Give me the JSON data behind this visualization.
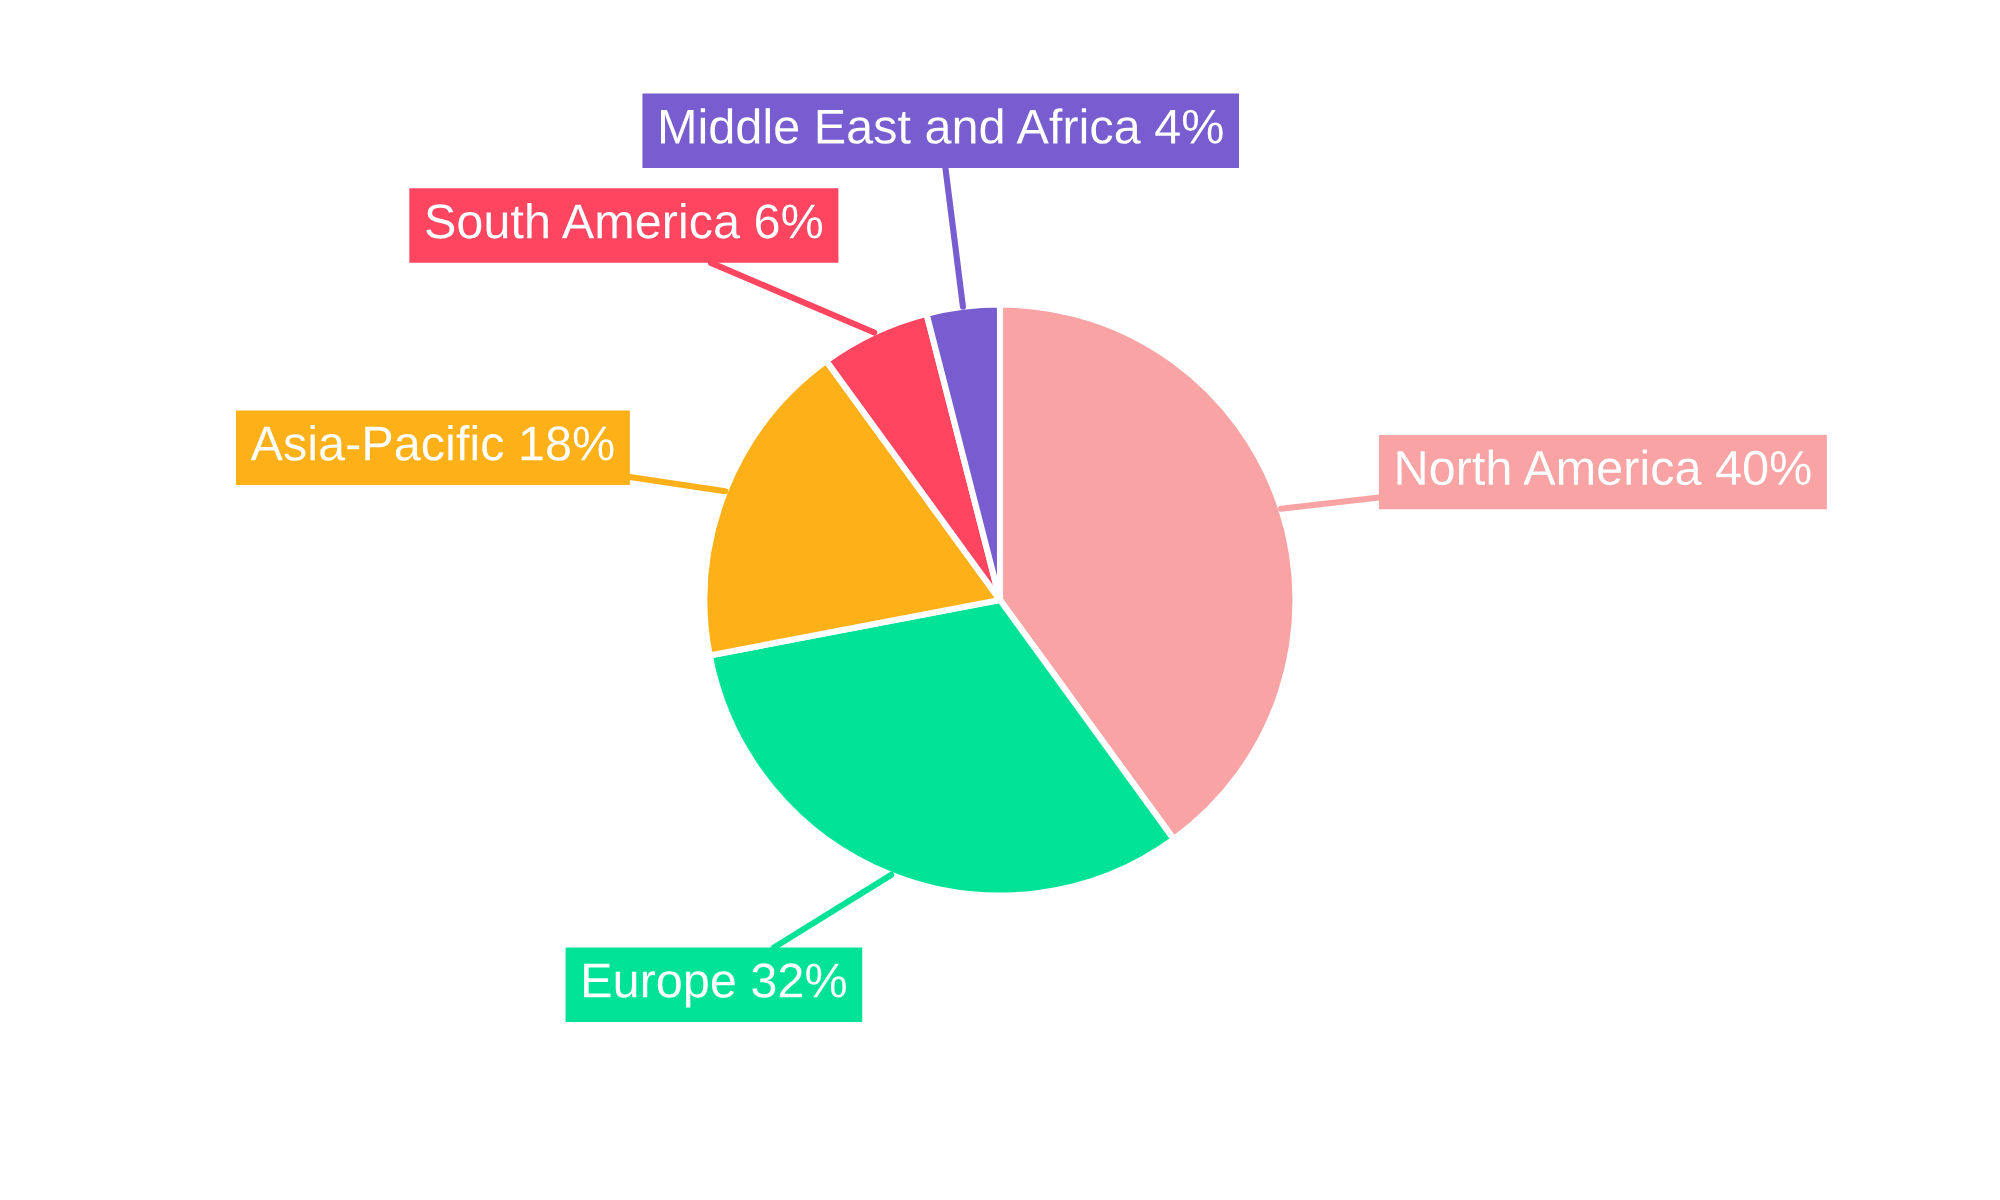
{
  "chart_data": {
    "type": "pie",
    "categories": [
      "North America",
      "Europe",
      "Asia-Pacific",
      "South America",
      "Middle East and Africa"
    ],
    "values": [
      40,
      32,
      18,
      6,
      4
    ],
    "value_labels": [
      "40%",
      "32%",
      "18%",
      "6%",
      "4%"
    ],
    "colors": [
      "#f9a3a4",
      "#00e396",
      "#feb019",
      "#ff4560",
      "#775dd0"
    ]
  }
}
